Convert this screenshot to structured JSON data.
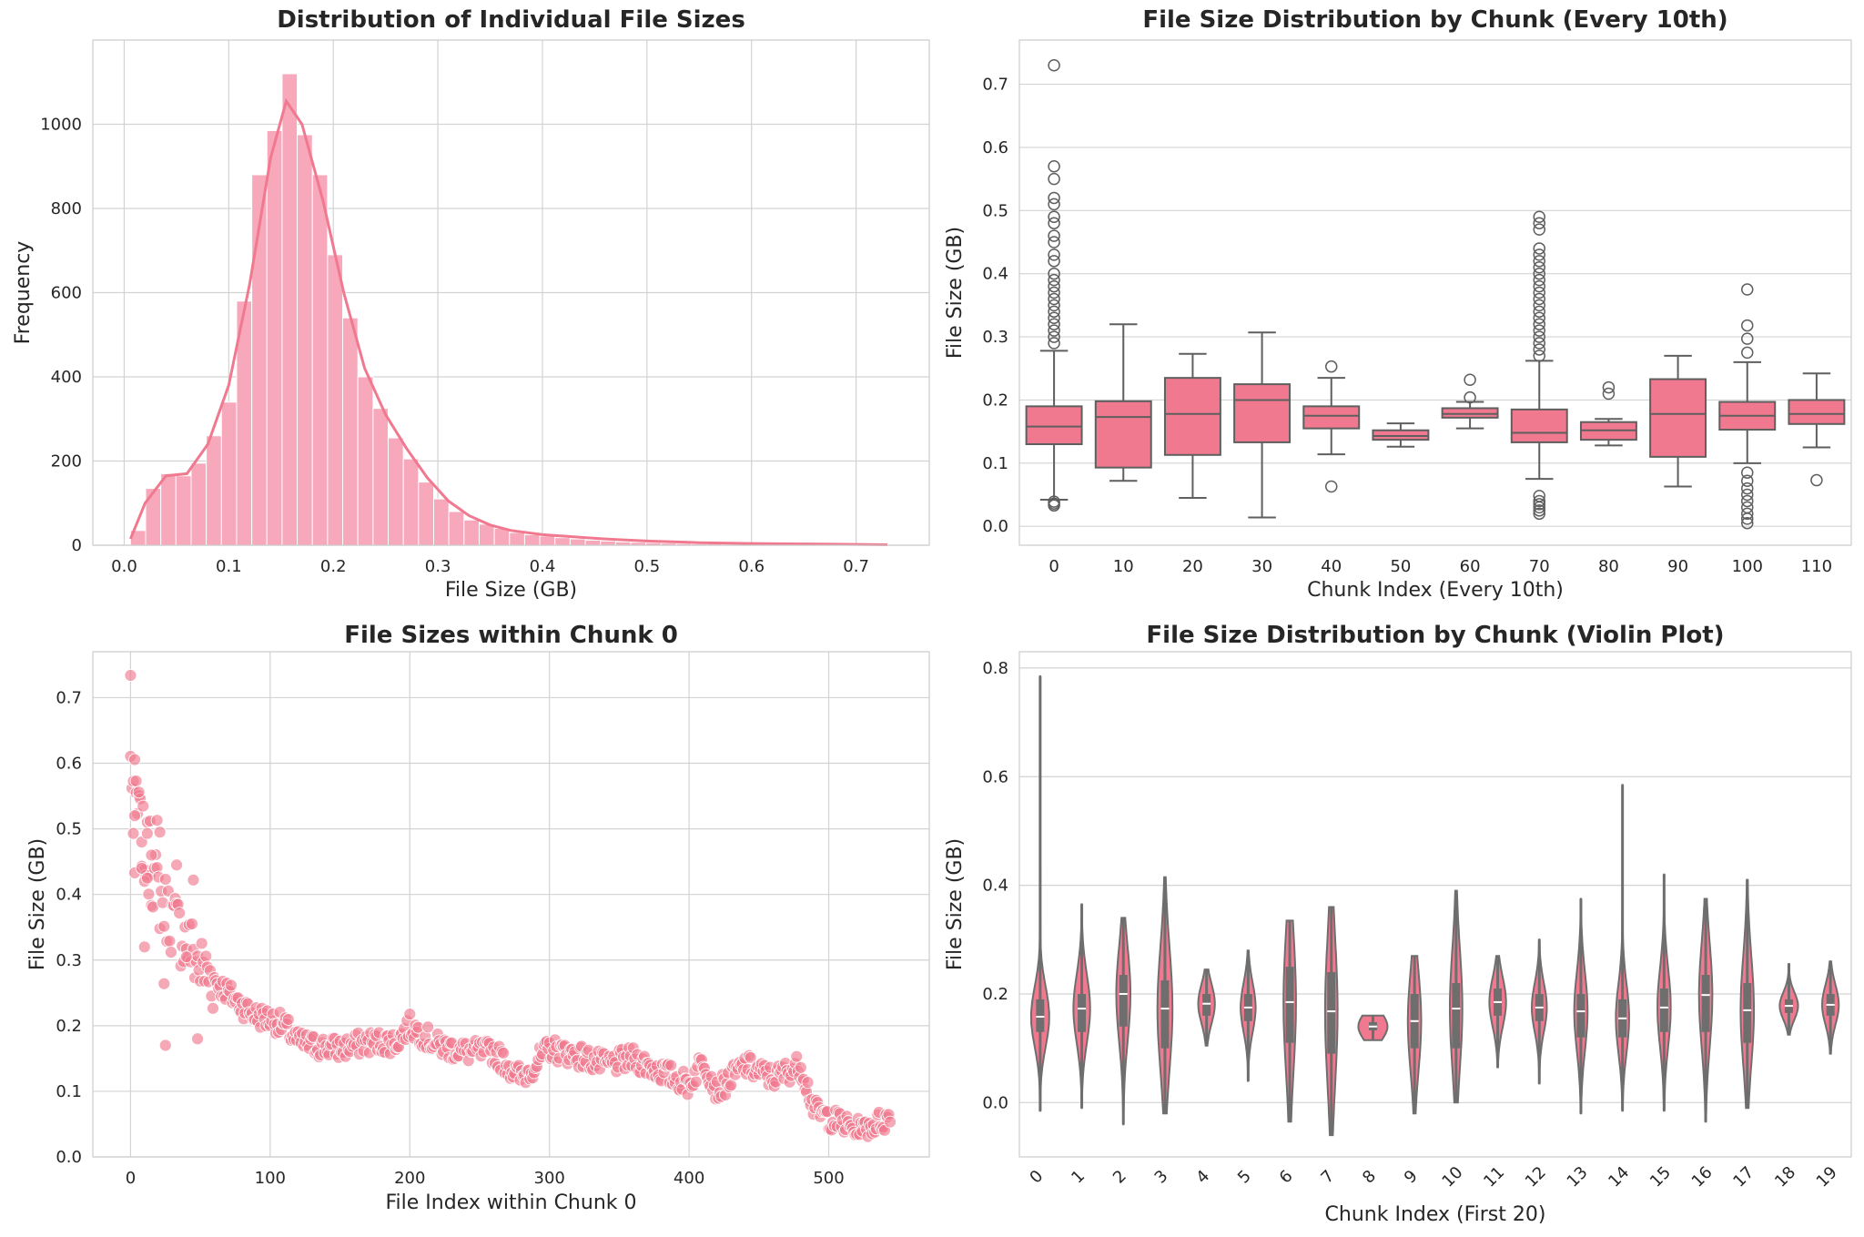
{
  "colors": {
    "pink": "#f0798f",
    "pink_light": "#f7a8bb",
    "box_edge": "#5f5f5f",
    "grid": "#d3d3d3",
    "violin_fill": "#6e6e6e"
  },
  "chart_data": [
    {
      "type": "bar",
      "subtype": "histogram_with_kde",
      "title": "Distribution of Individual File Sizes",
      "xlabel": "File Size (GB)",
      "ylabel": "Frequency",
      "xlim": [
        -0.03,
        0.77
      ],
      "ylim": [
        0,
        1200
      ],
      "xticks": [
        0.0,
        0.1,
        0.2,
        0.3,
        0.4,
        0.5,
        0.6,
        0.7
      ],
      "xtick_labels": [
        "0.0",
        "0.1",
        "0.2",
        "0.3",
        "0.4",
        "0.5",
        "0.6",
        "0.7"
      ],
      "yticks": [
        0,
        200,
        400,
        600,
        800,
        1000
      ],
      "yticks_labels": [
        "0",
        "200",
        "400",
        "600",
        "800",
        "1000"
      ],
      "bin_start": 0.006,
      "bin_width": 0.0145,
      "counts": [
        35,
        135,
        170,
        165,
        195,
        260,
        340,
        580,
        880,
        985,
        1120,
        975,
        880,
        690,
        540,
        400,
        325,
        255,
        205,
        150,
        110,
        80,
        60,
        50,
        40,
        30,
        25,
        22,
        18,
        15,
        12,
        10,
        8,
        7,
        6,
        5,
        4,
        3,
        3,
        2,
        2,
        2,
        2,
        2,
        1,
        1,
        1,
        1,
        1,
        1
      ],
      "kde_x": [
        0.006,
        0.02,
        0.04,
        0.06,
        0.08,
        0.1,
        0.12,
        0.14,
        0.155,
        0.17,
        0.19,
        0.21,
        0.23,
        0.25,
        0.27,
        0.29,
        0.31,
        0.33,
        0.35,
        0.37,
        0.4,
        0.43,
        0.46,
        0.5,
        0.55,
        0.6,
        0.65,
        0.7,
        0.73
      ],
      "kde_y": [
        15,
        100,
        165,
        170,
        240,
        380,
        620,
        920,
        1055,
        1000,
        820,
        600,
        420,
        310,
        230,
        160,
        105,
        70,
        48,
        35,
        25,
        20,
        15,
        10,
        6,
        4,
        3,
        2,
        1
      ],
      "grid": true,
      "color": "pink"
    },
    {
      "type": "box",
      "title": "File Size Distribution by Chunk (Every 10th)",
      "xlabel": "Chunk Index (Every 10th)",
      "ylabel": "File Size (GB)",
      "ylim": [
        -0.03,
        0.77
      ],
      "yticks": [
        0.0,
        0.1,
        0.2,
        0.3,
        0.4,
        0.5,
        0.6,
        0.7
      ],
      "ytick_labels": [
        "0.0",
        "0.1",
        "0.2",
        "0.3",
        "0.4",
        "0.5",
        "0.6",
        "0.7"
      ],
      "categories": [
        "0",
        "10",
        "20",
        "30",
        "40",
        "50",
        "60",
        "70",
        "80",
        "90",
        "100",
        "110"
      ],
      "boxes": [
        {
          "q1": 0.13,
          "median": 0.158,
          "q3": 0.19,
          "whislo": 0.042,
          "whishi": 0.278,
          "fliers": [
            0.033,
            0.036,
            0.039,
            0.29,
            0.3,
            0.31,
            0.32,
            0.33,
            0.34,
            0.35,
            0.36,
            0.37,
            0.38,
            0.39,
            0.4,
            0.42,
            0.43,
            0.45,
            0.46,
            0.48,
            0.49,
            0.51,
            0.52,
            0.55,
            0.57,
            0.73
          ]
        },
        {
          "q1": 0.093,
          "median": 0.173,
          "q3": 0.198,
          "whislo": 0.072,
          "whishi": 0.32,
          "fliers": []
        },
        {
          "q1": 0.113,
          "median": 0.178,
          "q3": 0.235,
          "whislo": 0.045,
          "whishi": 0.273,
          "fliers": []
        },
        {
          "q1": 0.133,
          "median": 0.2,
          "q3": 0.225,
          "whislo": 0.014,
          "whishi": 0.307,
          "fliers": []
        },
        {
          "q1": 0.155,
          "median": 0.175,
          "q3": 0.19,
          "whislo": 0.114,
          "whishi": 0.235,
          "fliers": [
            0.063,
            0.253
          ]
        },
        {
          "q1": 0.137,
          "median": 0.143,
          "q3": 0.152,
          "whislo": 0.126,
          "whishi": 0.163,
          "fliers": []
        },
        {
          "q1": 0.172,
          "median": 0.178,
          "q3": 0.187,
          "whislo": 0.155,
          "whishi": 0.197,
          "fliers": [
            0.204,
            0.232
          ]
        },
        {
          "q1": 0.133,
          "median": 0.148,
          "q3": 0.185,
          "whislo": 0.075,
          "whishi": 0.262,
          "fliers": [
            0.02,
            0.025,
            0.03,
            0.035,
            0.04,
            0.048,
            0.27,
            0.28,
            0.29,
            0.3,
            0.31,
            0.32,
            0.33,
            0.34,
            0.35,
            0.36,
            0.37,
            0.38,
            0.39,
            0.4,
            0.41,
            0.42,
            0.43,
            0.44,
            0.47,
            0.48,
            0.49
          ]
        },
        {
          "q1": 0.137,
          "median": 0.152,
          "q3": 0.165,
          "whislo": 0.128,
          "whishi": 0.17,
          "fliers": [
            0.21,
            0.22
          ]
        },
        {
          "q1": 0.11,
          "median": 0.178,
          "q3": 0.233,
          "whislo": 0.063,
          "whishi": 0.27,
          "fliers": []
        },
        {
          "q1": 0.153,
          "median": 0.175,
          "q3": 0.197,
          "whislo": 0.1,
          "whishi": 0.26,
          "fliers": [
            0.005,
            0.012,
            0.02,
            0.03,
            0.04,
            0.05,
            0.06,
            0.072,
            0.085,
            0.275,
            0.297,
            0.318,
            0.375
          ]
        },
        {
          "q1": 0.162,
          "median": 0.178,
          "q3": 0.2,
          "whislo": 0.125,
          "whishi": 0.242,
          "fliers": [
            0.073
          ]
        }
      ],
      "grid": true,
      "color": "pink"
    },
    {
      "type": "scatter",
      "title": "File Sizes within Chunk 0",
      "xlabel": "File Index within Chunk 0",
      "ylabel": "File Size (GB)",
      "xlim": [
        -27,
        572
      ],
      "ylim": [
        0,
        0.77
      ],
      "xticks": [
        0,
        100,
        200,
        300,
        400,
        500
      ],
      "xtick_labels": [
        "0",
        "100",
        "200",
        "300",
        "400",
        "500"
      ],
      "yticks": [
        0.0,
        0.1,
        0.2,
        0.3,
        0.4,
        0.5,
        0.6,
        0.7
      ],
      "ytick_labels": [
        "0.0",
        "0.1",
        "0.2",
        "0.3",
        "0.4",
        "0.5",
        "0.6",
        "0.7"
      ],
      "n_points": 545,
      "trend_x": [
        0,
        5,
        10,
        20,
        30,
        40,
        50,
        60,
        70,
        80,
        90,
        100,
        110,
        120,
        130,
        150,
        170,
        190,
        200,
        220,
        240,
        260,
        280,
        300,
        320,
        340,
        360,
        380,
        400,
        410,
        420,
        440,
        460,
        480,
        490,
        500,
        520,
        545
      ],
      "trend_y": [
        0.6,
        0.52,
        0.47,
        0.4,
        0.36,
        0.33,
        0.29,
        0.27,
        0.25,
        0.23,
        0.215,
        0.21,
        0.2,
        0.175,
        0.17,
        0.165,
        0.175,
        0.175,
        0.2,
        0.17,
        0.16,
        0.16,
        0.12,
        0.165,
        0.155,
        0.14,
        0.15,
        0.13,
        0.11,
        0.15,
        0.1,
        0.14,
        0.12,
        0.14,
        0.07,
        0.06,
        0.04,
        0.06
      ],
      "highlights": [
        {
          "x": 0,
          "y": 0.734
        },
        {
          "x": 4,
          "y": 0.573
        },
        {
          "x": 6,
          "y": 0.556
        },
        {
          "x": 3,
          "y": 0.52
        },
        {
          "x": 2,
          "y": 0.493
        },
        {
          "x": 8,
          "y": 0.48
        },
        {
          "x": 12,
          "y": 0.493
        },
        {
          "x": 14,
          "y": 0.512
        },
        {
          "x": 19,
          "y": 0.513
        },
        {
          "x": 21,
          "y": 0.495
        },
        {
          "x": 3,
          "y": 0.433
        },
        {
          "x": 8,
          "y": 0.44
        },
        {
          "x": 10,
          "y": 0.42
        },
        {
          "x": 12,
          "y": 0.425
        },
        {
          "x": 15,
          "y": 0.46
        },
        {
          "x": 10,
          "y": 0.32
        },
        {
          "x": 25,
          "y": 0.17
        },
        {
          "x": 48,
          "y": 0.18
        },
        {
          "x": 33,
          "y": 0.445
        },
        {
          "x": 45,
          "y": 0.422
        },
        {
          "x": 24,
          "y": 0.264
        },
        {
          "x": 40,
          "y": 0.305
        }
      ],
      "grid": true,
      "color": "pink"
    },
    {
      "type": "violin",
      "title": "File Size Distribution by Chunk (Violin Plot)",
      "xlabel": "Chunk Index (First 20)",
      "ylabel": "File Size (GB)",
      "ylim": [
        -0.1,
        0.83
      ],
      "yticks": [
        0.0,
        0.2,
        0.4,
        0.6,
        0.8
      ],
      "ytick_labels": [
        "0.0",
        "0.2",
        "0.4",
        "0.6",
        "0.8"
      ],
      "categories": [
        "0",
        "1",
        "2",
        "3",
        "4",
        "5",
        "6",
        "7",
        "8",
        "9",
        "10",
        "11",
        "12",
        "13",
        "14",
        "15",
        "16",
        "17",
        "18",
        "19"
      ],
      "violins": [
        {
          "min": -0.015,
          "max": 0.785,
          "median": 0.158,
          "q1": 0.13,
          "q3": 0.19,
          "half_width": 0.22
        },
        {
          "min": -0.01,
          "max": 0.365,
          "median": 0.173,
          "q1": 0.13,
          "q3": 0.2,
          "half_width": 0.2
        },
        {
          "min": -0.04,
          "max": 0.34,
          "median": 0.2,
          "q1": 0.14,
          "q3": 0.235,
          "half_width": 0.17
        },
        {
          "min": -0.02,
          "max": 0.415,
          "median": 0.173,
          "q1": 0.1,
          "q3": 0.225,
          "half_width": 0.18
        },
        {
          "min": 0.105,
          "max": 0.245,
          "median": 0.182,
          "q1": 0.16,
          "q3": 0.2,
          "half_width": 0.2
        },
        {
          "min": 0.04,
          "max": 0.28,
          "median": 0.175,
          "q1": 0.15,
          "q3": 0.2,
          "half_width": 0.18
        },
        {
          "min": -0.035,
          "max": 0.335,
          "median": 0.185,
          "q1": 0.11,
          "q3": 0.25,
          "half_width": 0.15
        },
        {
          "min": -0.06,
          "max": 0.36,
          "median": 0.168,
          "q1": 0.09,
          "q3": 0.24,
          "half_width": 0.15
        },
        {
          "min": 0.115,
          "max": 0.16,
          "median": 0.14,
          "q1": 0.133,
          "q3": 0.148,
          "half_width": 0.35
        },
        {
          "min": -0.02,
          "max": 0.27,
          "median": 0.15,
          "q1": 0.1,
          "q3": 0.2,
          "half_width": 0.16
        },
        {
          "min": 0.0,
          "max": 0.39,
          "median": 0.173,
          "q1": 0.1,
          "q3": 0.22,
          "half_width": 0.15
        },
        {
          "min": 0.065,
          "max": 0.27,
          "median": 0.185,
          "q1": 0.16,
          "q3": 0.21,
          "half_width": 0.2
        },
        {
          "min": 0.035,
          "max": 0.3,
          "median": 0.175,
          "q1": 0.15,
          "q3": 0.2,
          "half_width": 0.18
        },
        {
          "min": -0.02,
          "max": 0.375,
          "median": 0.168,
          "q1": 0.12,
          "q3": 0.2,
          "half_width": 0.16
        },
        {
          "min": -0.015,
          "max": 0.585,
          "median": 0.155,
          "q1": 0.12,
          "q3": 0.19,
          "half_width": 0.16
        },
        {
          "min": -0.015,
          "max": 0.42,
          "median": 0.175,
          "q1": 0.13,
          "q3": 0.21,
          "half_width": 0.16
        },
        {
          "min": -0.035,
          "max": 0.375,
          "median": 0.198,
          "q1": 0.13,
          "q3": 0.235,
          "half_width": 0.16
        },
        {
          "min": -0.01,
          "max": 0.41,
          "median": 0.17,
          "q1": 0.11,
          "q3": 0.22,
          "half_width": 0.16
        },
        {
          "min": 0.125,
          "max": 0.255,
          "median": 0.178,
          "q1": 0.165,
          "q3": 0.19,
          "half_width": 0.22
        },
        {
          "min": 0.09,
          "max": 0.26,
          "median": 0.18,
          "q1": 0.16,
          "q3": 0.2,
          "half_width": 0.2
        }
      ],
      "grid": true,
      "color": "pink"
    }
  ]
}
